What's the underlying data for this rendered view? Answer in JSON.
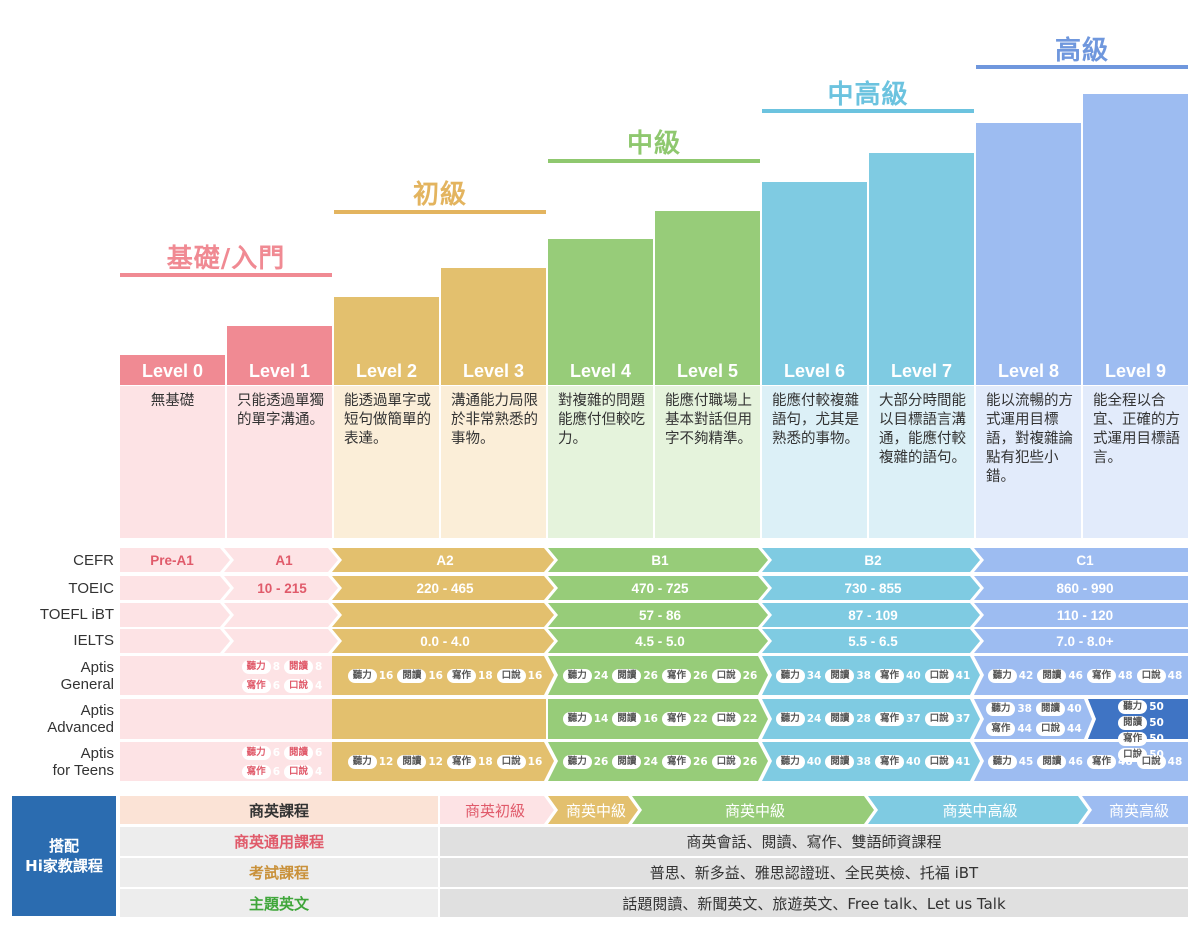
{
  "tiers": [
    {
      "id": "basic",
      "title": "基礎/入門",
      "color": "#f08a93"
    },
    {
      "id": "elementary",
      "title": "初級",
      "color": "#e3b45f"
    },
    {
      "id": "intermediate",
      "title": "中級",
      "color": "#8fc86f"
    },
    {
      "id": "upper",
      "title": "中高級",
      "color": "#6cc3df"
    },
    {
      "id": "advanced",
      "title": "高級",
      "color": "#6f97dd"
    }
  ],
  "levels": [
    {
      "label": "Level 0",
      "desc": "無基礎"
    },
    {
      "label": "Level 1",
      "desc": "只能透過單獨的單字溝通。"
    },
    {
      "label": "Level 2",
      "desc": "能透過單字或短句做簡單的表達。"
    },
    {
      "label": "Level 3",
      "desc": "溝通能力局限於非常熟悉的事物。"
    },
    {
      "label": "Level 4",
      "desc": "對複雜的問題能應付但較吃力。"
    },
    {
      "label": "Level 5",
      "desc": "能應付職場上基本對話但用字不夠精準。"
    },
    {
      "label": "Level 6",
      "desc": "能應付較複雜語句，尤其是熟悉的事物。"
    },
    {
      "label": "Level 7",
      "desc": "大部分時間能以目標語言溝通，能應付較複雜的語句。"
    },
    {
      "label": "Level 8",
      "desc": "能以流暢的方式運用目標語，對複雜論點有犯些小錯。"
    },
    {
      "label": "Level 9",
      "desc": "能全程以合宜、正確的方式運用目標語言。"
    }
  ],
  "rows": {
    "cefr": {
      "label": "CEFR",
      "cells": [
        "Pre-A1",
        "A1",
        "A2",
        "B1",
        "B2",
        "C1"
      ]
    },
    "toeic": {
      "label": "TOEIC",
      "cells": [
        "10 - 215",
        "220 - 465",
        "470 - 725",
        "730 - 855",
        "860 - 990"
      ]
    },
    "toefl": {
      "label": "TOEFL iBT",
      "cells": [
        "57 - 86",
        "87 - 109",
        "110 - 120"
      ]
    },
    "ielts": {
      "label": "IELTS",
      "cells": [
        "0.0 - 4.0",
        "4.5 - 5.0",
        "5.5 - 6.5",
        "7.0 - 8.0+"
      ]
    },
    "aptis_general": {
      "label1": "Aptis",
      "label2": "General"
    },
    "aptis_advanced": {
      "label1": "Aptis",
      "label2": "Advanced"
    },
    "aptis_teens": {
      "label1": "Aptis",
      "label2": "for Teens"
    }
  },
  "skills": {
    "listen": "聽力",
    "read": "閱讀",
    "write": "寫作",
    "speak": "口說"
  },
  "aptis_general": [
    {
      "listen": "8",
      "read": "8",
      "write": "6",
      "speak": "4"
    },
    {
      "listen": "16",
      "read": "16",
      "write": "18",
      "speak": "16"
    },
    {
      "listen": "24",
      "read": "26",
      "write": "26",
      "speak": "26"
    },
    {
      "listen": "34",
      "read": "38",
      "write": "40",
      "speak": "41"
    },
    {
      "listen": "42",
      "read": "46",
      "write": "48",
      "speak": "48"
    }
  ],
  "aptis_advanced": [
    {
      "listen": "14",
      "read": "16",
      "write": "22",
      "speak": "22"
    },
    {
      "listen": "24",
      "read": "28",
      "write": "37",
      "speak": "37"
    },
    {
      "listen": "38",
      "read": "40",
      "write": "44",
      "speak": "44"
    },
    {
      "listen": "50",
      "read": "50",
      "write": "50",
      "speak": "50"
    }
  ],
  "aptis_teens": [
    {
      "listen": "6",
      "read": "6",
      "write": "6",
      "speak": "4"
    },
    {
      "listen": "12",
      "read": "12",
      "write": "18",
      "speak": "16"
    },
    {
      "listen": "26",
      "read": "24",
      "write": "26",
      "speak": "26"
    },
    {
      "listen": "40",
      "read": "38",
      "write": "40",
      "speak": "41"
    },
    {
      "listen": "45",
      "read": "46",
      "write": "48",
      "speak": "48"
    }
  ],
  "courses": {
    "side_line1": "搭配",
    "side_line2": "Hi家教課程",
    "business_label": "商英課程",
    "business_cells": [
      "商英初級",
      "商英中級",
      "商英中級",
      "商英中高級",
      "商英高級"
    ],
    "general_label": "商英通用課程",
    "general_value": "商英會話、閱讀、寫作、雙語師資課程",
    "exam_label": "考試課程",
    "exam_value": "普思、新多益、雅思認證班、全民英檢、托福 iBT",
    "topic_label": "主題英文",
    "topic_value": "話題閱讀、新聞英文、旅遊英文、Free talk、Let us Talk"
  }
}
